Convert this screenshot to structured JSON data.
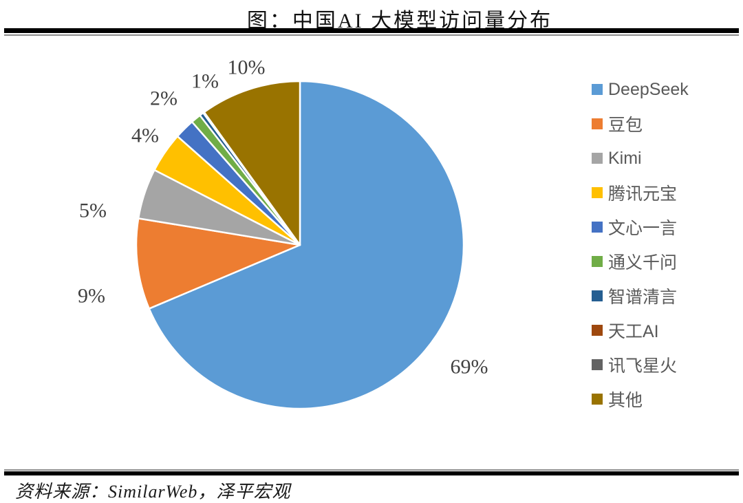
{
  "page": {
    "title": "图：中国AI 大模型访问量分布",
    "source_note": "资料来源：SimilarWeb，泽平宏观"
  },
  "chart_data": {
    "type": "pie",
    "title": "图：中国AI 大模型访问量分布",
    "legend_position": "right",
    "unit": "percent",
    "slices": [
      {
        "label": "DeepSeek",
        "value": 69,
        "pct_label": "69%",
        "color": "#5B9BD5"
      },
      {
        "label": "豆包",
        "value": 9,
        "pct_label": "9%",
        "color": "#ED7D31"
      },
      {
        "label": "Kimi",
        "value": 5,
        "pct_label": "5%",
        "color": "#A5A5A5"
      },
      {
        "label": "腾讯元宝",
        "value": 4,
        "pct_label": "4%",
        "color": "#FFC000"
      },
      {
        "label": "文心一言",
        "value": 2,
        "pct_label": "2%",
        "color": "#4472C4"
      },
      {
        "label": "通义千问",
        "value": 1,
        "pct_label": "1%",
        "color": "#70AD47"
      },
      {
        "label": "智谱清言",
        "value": 0,
        "pct_label": "",
        "color": "#255E91"
      },
      {
        "label": "天工AI",
        "value": 0,
        "pct_label": "",
        "color": "#9E480E"
      },
      {
        "label": "讯飞星火",
        "value": 0,
        "pct_label": "",
        "color": "#636363"
      },
      {
        "label": "其他",
        "value": 10,
        "pct_label": "10%",
        "color": "#997300"
      }
    ],
    "text_colors": {
      "title": "#111111",
      "percent_labels": "#404040",
      "legend": "#595959"
    }
  }
}
